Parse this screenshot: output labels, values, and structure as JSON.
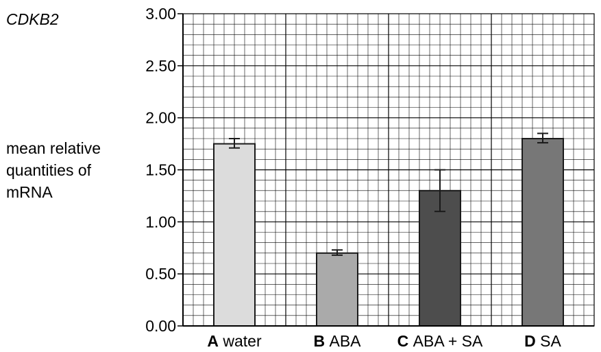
{
  "chart_data": {
    "type": "bar",
    "title": "CDKB2",
    "ylabel_lines": [
      "mean relative",
      "quantities of",
      "mRNA"
    ],
    "xlabel": "",
    "ylim": [
      0,
      3
    ],
    "yticks": [
      "0.00",
      "0.50",
      "1.00",
      "1.50",
      "2.00",
      "2.50",
      "3.00"
    ],
    "grid": true,
    "categories": [
      {
        "letter": "A",
        "name": "water"
      },
      {
        "letter": "B",
        "name": "ABA"
      },
      {
        "letter": "C",
        "name": "ABA + SA"
      },
      {
        "letter": "D",
        "name": "SA"
      }
    ],
    "values": [
      1.75,
      0.7,
      1.3,
      1.8
    ],
    "error_low": [
      1.71,
      0.68,
      1.1,
      1.76
    ],
    "error_high": [
      1.8,
      0.73,
      1.5,
      1.85
    ],
    "colors": [
      "#dcdcdc",
      "#aaaaaa",
      "#4d4d4d",
      "#777777"
    ]
  }
}
